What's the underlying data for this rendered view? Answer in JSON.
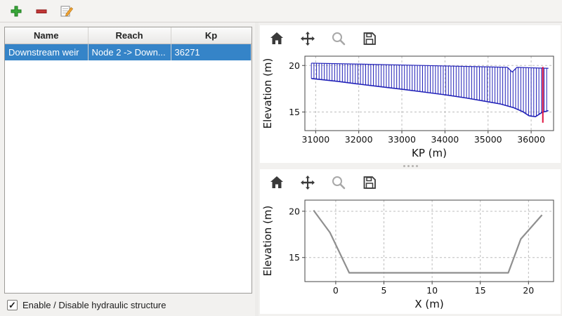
{
  "main_toolbar": {
    "buttons": [
      {
        "name": "add-structure",
        "icon": "plus-icon"
      },
      {
        "name": "remove-structure",
        "icon": "minus-icon"
      },
      {
        "name": "edit-structure",
        "icon": "edit-icon"
      }
    ]
  },
  "structures_table": {
    "columns": [
      "Name",
      "Reach",
      "Kp"
    ],
    "rows": [
      {
        "name": "Downstream weir",
        "reach": "Node 2 -> Down...",
        "kp": "36271"
      }
    ]
  },
  "enable_checkbox": {
    "label": "Enable / Disable hydraulic structure",
    "checked": true,
    "mark": "✓"
  },
  "chart_toolbar": {
    "icons": [
      "home-icon",
      "pan-icon",
      "zoom-icon",
      "save-icon"
    ]
  },
  "chart_data": [
    {
      "type": "area",
      "xlabel": "KP (m)",
      "ylabel": "Elevation (m)",
      "xlim": [
        30750,
        36520
      ],
      "ylim": [
        13,
        21
      ],
      "xticks": [
        31000,
        32000,
        33000,
        34000,
        35000,
        36000
      ],
      "yticks": [
        15,
        20
      ],
      "grid": true,
      "line_color": "#2121b8",
      "hatch_step": 60,
      "hatch_range": [
        30900,
        36400
      ],
      "bed": [
        [
          30900,
          18.6
        ],
        [
          31500,
          18.3
        ],
        [
          32000,
          18.0
        ],
        [
          32500,
          17.72
        ],
        [
          33000,
          17.45
        ],
        [
          33500,
          17.15
        ],
        [
          34000,
          16.85
        ],
        [
          34500,
          16.5
        ],
        [
          35000,
          16.1
        ],
        [
          35300,
          15.85
        ],
        [
          35600,
          15.45
        ],
        [
          35800,
          15.05
        ],
        [
          35950,
          14.6
        ],
        [
          36100,
          14.5
        ],
        [
          36250,
          14.95
        ],
        [
          36400,
          15.15
        ]
      ],
      "top": [
        [
          30900,
          20.25
        ],
        [
          32000,
          20.15
        ],
        [
          33000,
          20.05
        ],
        [
          34000,
          19.95
        ],
        [
          35000,
          19.85
        ],
        [
          35450,
          19.8
        ],
        [
          35560,
          19.3
        ],
        [
          35670,
          19.8
        ],
        [
          36000,
          19.75
        ],
        [
          36400,
          19.7
        ]
      ],
      "marker_line": {
        "x": 36271,
        "y0": 13.85,
        "y1": 19.85,
        "color": "#e0103c"
      }
    },
    {
      "type": "line",
      "xlabel": "X (m)",
      "ylabel": "Elevation (m)",
      "xlim": [
        -3.2,
        22.6
      ],
      "ylim": [
        12.4,
        21.2
      ],
      "xticks": [
        0,
        5,
        10,
        15,
        20
      ],
      "yticks": [
        15,
        20
      ],
      "grid": true,
      "line_color": "#8f8f8f",
      "points": [
        [
          -2.3,
          20.1
        ],
        [
          -0.6,
          17.7
        ],
        [
          1.4,
          13.35
        ],
        [
          17.9,
          13.35
        ],
        [
          19.2,
          17.0
        ],
        [
          21.4,
          19.6
        ]
      ]
    }
  ]
}
